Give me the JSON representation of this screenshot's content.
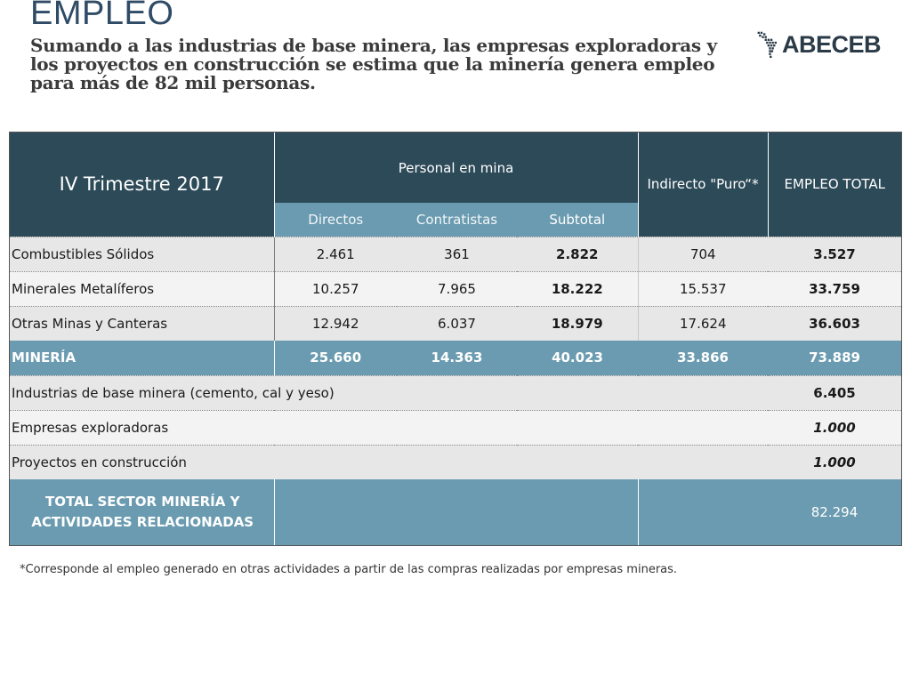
{
  "header": {
    "title": "EMPLEO",
    "subtitle": "Sumando a las industrias de base minera, las empresas exploradoras y los proyectos en construcción se estima que la minería genera empleo para más de 82 mil personas.",
    "logo_text": "ABECEB"
  },
  "table": {
    "period": "IV Trimestre 2017",
    "group_header": "Personal en mina",
    "indirect_header": "Indirecto \"Puro“*",
    "total_header": "EMPLEO TOTAL",
    "sub_headers": [
      "Directos",
      "Contratistas",
      "Subtotal"
    ],
    "rows": [
      {
        "label": "Combustibles Sólidos",
        "directos": "2.461",
        "contratistas": "361",
        "subtotal": "2.822",
        "indirecto": "704",
        "total": "3.527"
      },
      {
        "label": "Minerales Metalíferos",
        "directos": "10.257",
        "contratistas": "7.965",
        "subtotal": "18.222",
        "indirecto": "15.537",
        "total": "33.759"
      },
      {
        "label": "Otras Minas y Canteras",
        "directos": "12.942",
        "contratistas": "6.037",
        "subtotal": "18.979",
        "indirecto": "17.624",
        "total": "36.603"
      }
    ],
    "mineria": {
      "label": "MINERÍA",
      "directos": "25.660",
      "contratistas": "14.363",
      "subtotal": "40.023",
      "indirecto": "33.866",
      "total": "73.889"
    },
    "extra_rows": [
      {
        "label": "Industrias de base minera (cemento, cal y yeso)",
        "total": "6.405"
      },
      {
        "label": "Empresas exploradoras",
        "total": "1.000"
      },
      {
        "label": "Proyectos en construcción",
        "total": "1.000"
      }
    ],
    "grand_total": {
      "label": "TOTAL SECTOR MINERÍA Y ACTIVIDADES RELACIONADAS",
      "total": "82.294"
    }
  },
  "footnote": "*Corresponde al empleo generado en otras actividades a partir de las compras realizadas por empresas mineras.",
  "colors": {
    "header_dark": "#2d4a58",
    "header_light": "#6a9bb0",
    "title": "#2f4b66"
  }
}
